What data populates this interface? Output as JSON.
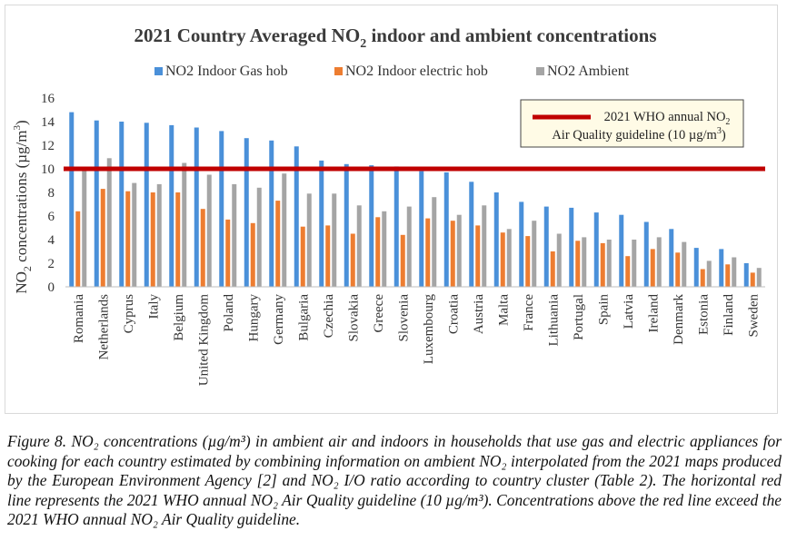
{
  "chart_data": {
    "type": "bar",
    "title_main": "2021 Country Averaged NO",
    "title_sub": "2",
    "title_rest": " indoor and ambient concentrations",
    "ylabel_main": "NO",
    "ylabel_sub": "2",
    "ylabel_rest": " concentrations (µg/m",
    "ylabel_sup": "3",
    "ylabel_end": ")",
    "ylim": [
      0,
      16
    ],
    "yticks": [
      "0",
      "2",
      "4",
      "6",
      "8",
      "10",
      "12",
      "14",
      "16"
    ],
    "grid": false,
    "legend_position": "top",
    "categories": [
      "Romania",
      "Netherlands",
      "Cyprus",
      "Italy",
      "Belgium",
      "United Kingdom",
      "Poland",
      "Hungary",
      "Germany",
      "Bulgaria",
      "Czechia",
      "Slovakia",
      "Greece",
      "Slovenia",
      "Luxembourg",
      "Croatia",
      "Austria",
      "Malta",
      "France",
      "Lithuania",
      "Portugal",
      "Spain",
      "Latvia",
      "Ireland",
      "Denmark",
      "Estonia",
      "Finland",
      "Sweden"
    ],
    "series": [
      {
        "name": "NO2  Indoor Gas hob",
        "color": "#4a90d9",
        "values": [
          14.8,
          14.1,
          14.0,
          13.9,
          13.7,
          13.5,
          13.2,
          12.6,
          12.4,
          11.9,
          10.7,
          10.4,
          10.3,
          10.2,
          9.8,
          9.7,
          8.9,
          8.0,
          7.2,
          6.8,
          6.7,
          6.3,
          6.1,
          5.5,
          4.9,
          3.3,
          3.2,
          2.0
        ]
      },
      {
        "name": "NO2 Indoor electric hob",
        "color": "#ed7d31",
        "values": [
          6.4,
          8.3,
          8.1,
          8.0,
          8.0,
          6.6,
          5.7,
          5.4,
          7.3,
          5.1,
          5.2,
          4.5,
          5.9,
          4.4,
          5.8,
          5.6,
          5.2,
          4.6,
          4.3,
          3.0,
          3.9,
          3.7,
          2.6,
          3.2,
          2.9,
          1.5,
          1.9,
          1.2
        ]
      },
      {
        "name": "NO2 Ambient",
        "color": "#a5a5a5",
        "values": [
          10.0,
          10.9,
          8.8,
          8.7,
          10.5,
          9.5,
          8.7,
          8.4,
          9.6,
          7.9,
          7.9,
          6.9,
          6.4,
          6.8,
          7.6,
          6.1,
          6.9,
          4.9,
          5.6,
          4.5,
          4.2,
          4.0,
          4.0,
          4.2,
          3.8,
          2.2,
          2.5,
          1.6
        ]
      }
    ],
    "reference_line": {
      "value": 10,
      "color": "#c00000",
      "label_line1": "2021 WHO annual NO",
      "label_line1_sub": "2",
      "label_line2": "Air Quality guideline (10 µg/m",
      "label_line2_sup": "3",
      "label_line2_end": ")",
      "box_fill": "#fffbe6"
    }
  },
  "caption": {
    "text": "Figure 8. NO₂ concentrations (µg/m³) in ambient air and indoors in households that use gas and electric appliances for cooking for each country estimated by combining information on ambient NO₂ interpolated from the 2021 maps produced by the European Environment Agency [2] and NO₂ I/O ratio according to country cluster (Table 2). The horizontal red line represents the 2021 WHO annual NO₂ Air Quality guideline (10 µg/m³). Concentrations above the red line exceed the 2021 WHO annual NO₂ Air Quality guideline."
  }
}
